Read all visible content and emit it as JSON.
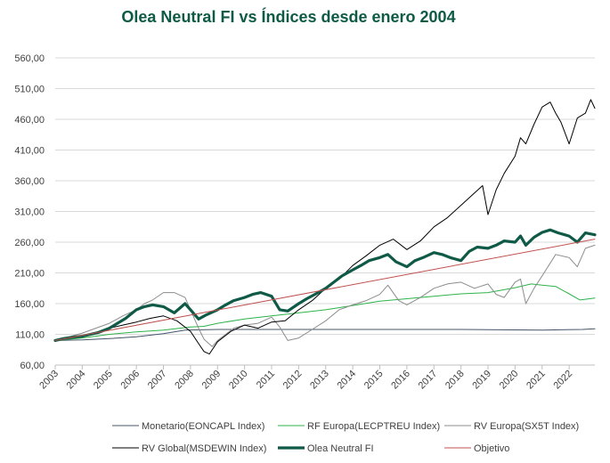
{
  "chart_data": {
    "type": "line",
    "title": "Olea Neutral FI vs Índices desde enero 2004",
    "xlabel": "",
    "ylabel": "",
    "ylim": [
      60,
      560
    ],
    "y_ticks": [
      "560,00",
      "510,00",
      "460,00",
      "410,00",
      "360,00",
      "310,00",
      "260,00",
      "210,00",
      "160,00",
      "110,00",
      "60,00"
    ],
    "y_tick_values": [
      560,
      510,
      460,
      410,
      360,
      310,
      260,
      210,
      160,
      110,
      60
    ],
    "x_ticks": [
      "2003",
      "2004",
      "2005",
      "2006",
      "2007",
      "2008",
      "2009",
      "2010",
      "2011",
      "2012",
      "2013",
      "2014",
      "2015",
      "2016",
      "2017",
      "2018",
      "2019",
      "2020",
      "2021",
      "2022"
    ],
    "x_tick_values": [
      2003,
      2004,
      2005,
      2006,
      2007,
      2008,
      2009,
      2010,
      2011,
      2012,
      2013,
      2014,
      2015,
      2016,
      2017,
      2018,
      2019,
      2020,
      2021,
      2022
    ],
    "xlim": [
      2003,
      2022.95
    ],
    "grid": "horizontal",
    "legend_position": "bottom",
    "series": [
      {
        "name": "Monetario(EONCAPL Index)",
        "color": "#44546a",
        "width": 1,
        "x": [
          2003.0,
          2004,
          2005,
          2006,
          2007,
          2007.8,
          2009,
          2012,
          2015,
          2018,
          2021,
          2022.5,
          2022.95
        ],
        "y": [
          100,
          101,
          103,
          106,
          111,
          117,
          118,
          118,
          118,
          118,
          117,
          118,
          119
        ]
      },
      {
        "name": "RF Europa(LECPTREU Index)",
        "color": "#2db34a",
        "width": 1,
        "x": [
          2003.0,
          2004,
          2005,
          2006,
          2007,
          2008,
          2008.5,
          2009,
          2010,
          2011,
          2012,
          2013,
          2014,
          2015,
          2016,
          2017,
          2018,
          2019,
          2020,
          2020.6,
          2021,
          2021.5,
          2022,
          2022.4,
          2022.95
        ],
        "y": [
          100,
          104,
          110,
          114,
          117,
          122,
          123,
          128,
          135,
          140,
          145,
          150,
          157,
          164,
          168,
          172,
          176,
          178,
          186,
          192,
          190,
          188,
          176,
          166,
          169
        ]
      },
      {
        "name": "RV Europa(SX5T Index)",
        "color": "#8c8c8c",
        "width": 1,
        "x": [
          2003.0,
          2003.5,
          2004,
          2004.5,
          2005,
          2005.5,
          2006,
          2006.3,
          2006.6,
          2007,
          2007.4,
          2007.8,
          2008,
          2008.3,
          2008.5,
          2008.8,
          2009,
          2009.3,
          2009.6,
          2010,
          2010.5,
          2011,
          2011.3,
          2011.6,
          2012,
          2012.5,
          2013,
          2013.5,
          2014,
          2014.5,
          2015,
          2015.3,
          2015.7,
          2016,
          2016.5,
          2017,
          2017.5,
          2018,
          2018.5,
          2019,
          2019.3,
          2019.6,
          2020,
          2020.2,
          2020.4,
          2020.7,
          2021,
          2021.5,
          2022,
          2022.3,
          2022.6,
          2022.95
        ],
        "y": [
          100,
          106,
          112,
          120,
          128,
          140,
          150,
          160,
          166,
          178,
          178,
          170,
          150,
          120,
          102,
          90,
          100,
          110,
          120,
          125,
          128,
          138,
          122,
          100,
          104,
          118,
          132,
          150,
          158,
          165,
          175,
          190,
          165,
          158,
          170,
          185,
          192,
          195,
          185,
          192,
          175,
          170,
          195,
          200,
          160,
          185,
          205,
          240,
          235,
          220,
          250,
          255
        ]
      },
      {
        "name": "RV Global(MSDEWIN Index)",
        "color": "#000000",
        "width": 1,
        "x": [
          2003.0,
          2003.5,
          2004,
          2004.5,
          2005,
          2005.5,
          2006,
          2006.5,
          2007,
          2007.5,
          2008,
          2008.3,
          2008.5,
          2008.7,
          2009,
          2009.5,
          2010,
          2010.5,
          2011,
          2011.5,
          2012,
          2012.5,
          2013,
          2013.5,
          2014,
          2014.5,
          2015,
          2015.5,
          2016,
          2016.5,
          2017,
          2017.5,
          2018,
          2018.5,
          2018.8,
          2019,
          2019.3,
          2019.6,
          2020,
          2020.2,
          2020.4,
          2020.7,
          2021,
          2021.3,
          2021.5,
          2021.7,
          2022,
          2022.3,
          2022.6,
          2022.8,
          2022.95
        ],
        "y": [
          100,
          103,
          108,
          113,
          120,
          125,
          130,
          136,
          140,
          132,
          115,
          95,
          82,
          78,
          98,
          115,
          125,
          120,
          130,
          132,
          150,
          165,
          185,
          200,
          222,
          238,
          255,
          265,
          248,
          262,
          285,
          300,
          320,
          340,
          352,
          305,
          345,
          372,
          400,
          430,
          420,
          452,
          480,
          488,
          470,
          455,
          420,
          462,
          470,
          492,
          478
        ]
      },
      {
        "name": "Olea Neutral FI",
        "color": "#0f5a46",
        "width": 3.2,
        "x": [
          2003.0,
          2003.3,
          2003.6,
          2004,
          2004.3,
          2004.6,
          2005,
          2005.3,
          2005.6,
          2006,
          2006.3,
          2006.6,
          2007,
          2007.4,
          2007.8,
          2008,
          2008.3,
          2008.6,
          2009,
          2009.3,
          2009.6,
          2010,
          2010.3,
          2010.6,
          2011,
          2011.3,
          2011.6,
          2012,
          2012.3,
          2012.6,
          2013,
          2013.3,
          2013.6,
          2014,
          2014.3,
          2014.6,
          2015,
          2015.3,
          2015.6,
          2016,
          2016.3,
          2016.6,
          2017,
          2017.3,
          2017.6,
          2018,
          2018.3,
          2018.6,
          2019,
          2019.3,
          2019.6,
          2020,
          2020.2,
          2020.4,
          2020.7,
          2021,
          2021.3,
          2021.6,
          2022,
          2022.3,
          2022.6,
          2022.95
        ],
        "y": [
          100,
          103,
          105,
          107,
          110,
          113,
          120,
          128,
          136,
          150,
          155,
          158,
          155,
          145,
          160,
          150,
          135,
          142,
          150,
          158,
          165,
          170,
          175,
          178,
          172,
          150,
          148,
          160,
          168,
          175,
          185,
          195,
          205,
          215,
          222,
          230,
          235,
          240,
          228,
          220,
          230,
          235,
          243,
          240,
          235,
          230,
          245,
          252,
          250,
          255,
          262,
          260,
          270,
          255,
          268,
          276,
          280,
          275,
          270,
          260,
          275,
          272
        ]
      },
      {
        "name": "Objetivo",
        "color": "#c0504d",
        "width": 1,
        "x": [
          2003.0,
          2022.95
        ],
        "y": [
          100,
          265
        ]
      }
    ]
  },
  "legend": {
    "items": [
      {
        "label": "Monetario(EONCAPL Index)",
        "color": "#44546a",
        "width": 1
      },
      {
        "label": "RF Europa(LECPTREU Index)",
        "color": "#2db34a",
        "width": 1
      },
      {
        "label": "RV Europa(SX5T Index)",
        "color": "#8c8c8c",
        "width": 1
      },
      {
        "label": "RV Global(MSDEWIN Index)",
        "color": "#000000",
        "width": 1
      },
      {
        "label": "Olea Neutral FI",
        "color": "#0f5a46",
        "width": 3.2
      },
      {
        "label": "Objetivo",
        "color": "#c0504d",
        "width": 1
      }
    ]
  }
}
